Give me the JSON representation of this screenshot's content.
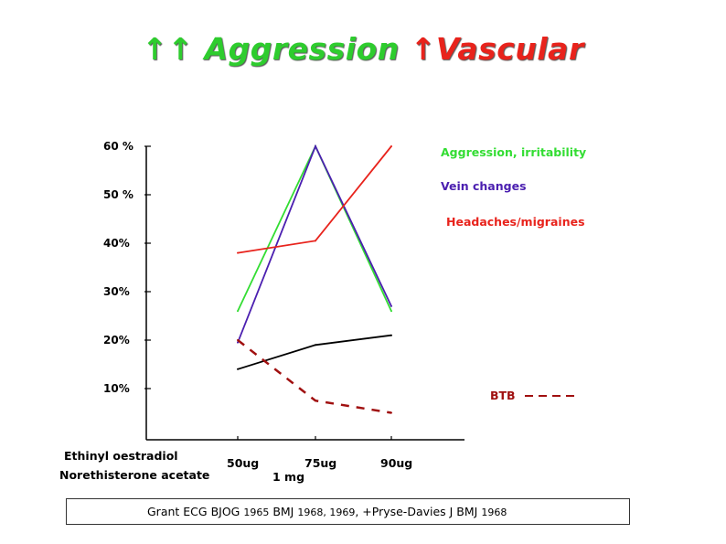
{
  "title": {
    "arrows_green": "↑↑",
    "word_green": "Aggression",
    "arrow_red": "↑",
    "word_red": "Vascular"
  },
  "chart_data": {
    "type": "line",
    "categories": [
      "50ug",
      "75ug",
      "90ug"
    ],
    "row_labels": [
      "Ethinyl oestradiol",
      "Norethisterone acetate"
    ],
    "norethisterone_dose": "1 mg",
    "ytick_labels": [
      "60 %",
      "50 %",
      "40%",
      "30%",
      "20%",
      "10%"
    ],
    "ytick_values": [
      60,
      50,
      40,
      30,
      20,
      10
    ],
    "ylim": [
      0,
      60
    ],
    "series": [
      {
        "name": "Aggression, irritability",
        "color": "#33dd33",
        "values": [
          26,
          60,
          26
        ],
        "style": "solid"
      },
      {
        "name": "Vein changes",
        "color": "#4b1fb0",
        "values": [
          19.5,
          60,
          27
        ],
        "style": "solid"
      },
      {
        "name": "Headaches/migraines",
        "color": "#e8231c",
        "values": [
          38,
          40.5,
          60
        ],
        "style": "solid"
      },
      {
        "name": "",
        "color": "#000000",
        "values": [
          14,
          19,
          21
        ],
        "style": "solid"
      },
      {
        "name": "BTB",
        "color": "#a01010",
        "values": [
          20,
          7.5,
          5
        ],
        "style": "dashed"
      }
    ]
  },
  "citation": {
    "part1": "Grant ECG BJOG ",
    "part1_year": "1965",
    "part2": "  BMJ ",
    "part2_years": "1968, 1969",
    "part3": ", +Pryse-Davies J  BMJ ",
    "part3_year": "1968"
  }
}
